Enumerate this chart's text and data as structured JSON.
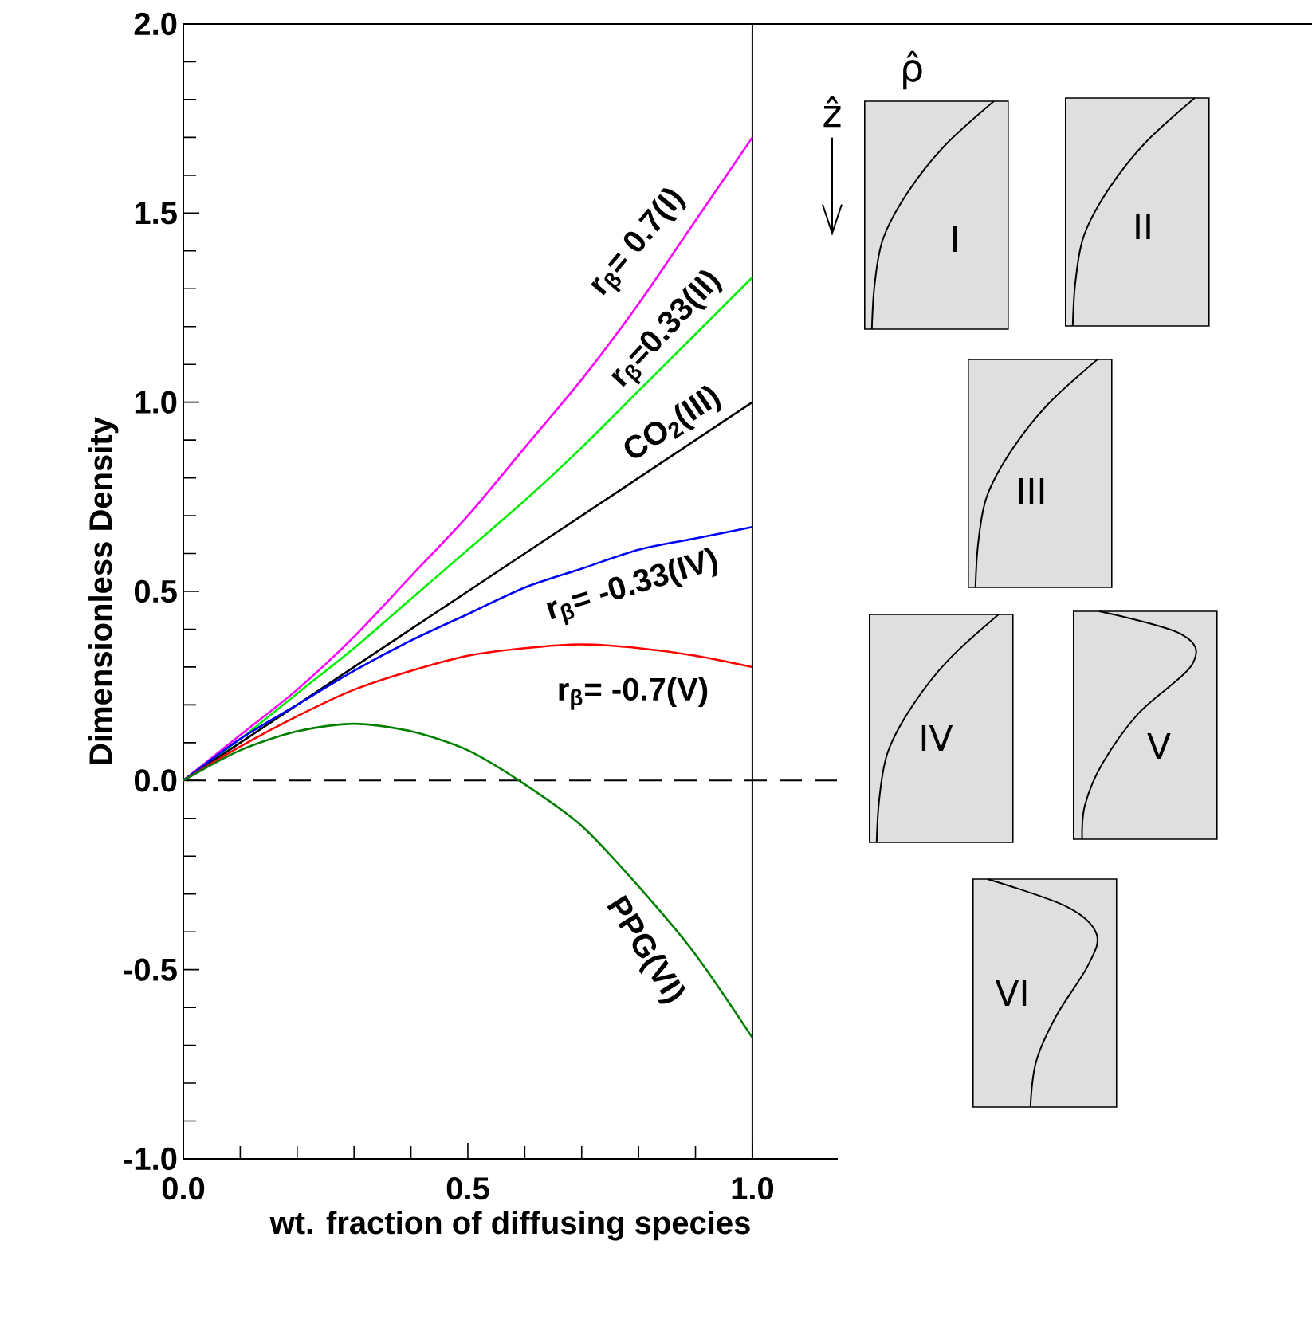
{
  "chart_data": {
    "type": "line",
    "xlabel": "wt. fraction of diffusing species",
    "ylabel": "Dimensionless Density",
    "x": [
      0,
      0.1,
      0.2,
      0.3,
      0.4,
      0.5,
      0.6,
      0.7,
      0.8,
      0.9,
      1.0
    ],
    "series": [
      {
        "name": "r$_{β}$= 0.7(I)",
        "color": "#ff00ff",
        "values": [
          0,
          0.12,
          0.24,
          0.38,
          0.54,
          0.7,
          0.88,
          1.06,
          1.26,
          1.48,
          1.7
        ]
      },
      {
        "name": "r$_{β}$=0.33(II)",
        "color": "#00ee00",
        "values": [
          0,
          0.11,
          0.23,
          0.35,
          0.48,
          0.61,
          0.74,
          0.88,
          1.03,
          1.18,
          1.33
        ]
      },
      {
        "name": "CO$_{2}$(III)",
        "color": "#000000",
        "values": [
          0,
          0.1,
          0.2,
          0.3,
          0.4,
          0.5,
          0.6,
          0.7,
          0.8,
          0.9,
          1.0
        ]
      },
      {
        "name": "r$_{β}$= -0.33(IV)",
        "color": "#0000ff",
        "values": [
          0,
          0.11,
          0.2,
          0.29,
          0.37,
          0.44,
          0.51,
          0.56,
          0.61,
          0.64,
          0.67
        ]
      },
      {
        "name": "r$_{β}$= -0.7(V)",
        "color": "#ff0000",
        "values": [
          0,
          0.09,
          0.17,
          0.24,
          0.29,
          0.33,
          0.35,
          0.36,
          0.35,
          0.33,
          0.3
        ]
      },
      {
        "name": "PPG(VI)",
        "color": "#008000",
        "values": [
          0,
          0.08,
          0.13,
          0.15,
          0.13,
          0.08,
          -0.01,
          -0.12,
          -0.28,
          -0.46,
          -0.68
        ]
      }
    ],
    "xlim": [
      0,
      1.15
    ],
    "ylim": [
      -1.0,
      2.0
    ],
    "xticks": [
      {
        "value": 0,
        "label": "0.0"
      },
      {
        "value": 0.1,
        "label": null
      },
      {
        "value": 0.2,
        "label": null
      },
      {
        "value": 0.3,
        "label": null
      },
      {
        "value": 0.4,
        "label": null
      },
      0.5,
      {
        "value": 0.6,
        "label": null
      },
      {
        "value": 0.7,
        "label": null
      },
      {
        "value": 0.8,
        "label": null
      },
      {
        "value": 0.9,
        "label": null
      },
      {
        "value": 1.0,
        "label": "1.0"
      }
    ],
    "yticks": [
      {
        "value": -1.0,
        "label": "-1.0"
      },
      {
        "value": -0.9,
        "label": null
      },
      {
        "value": -0.8,
        "label": null
      },
      {
        "value": -0.7,
        "label": null
      },
      {
        "value": -0.6,
        "label": null
      },
      -0.5,
      {
        "value": -0.4,
        "label": null
      },
      {
        "value": -0.3,
        "label": null
      },
      {
        "value": -0.2,
        "label": null
      },
      {
        "value": -0.1,
        "label": null
      },
      {
        "value": 0,
        "label": "0.0"
      },
      {
        "value": 0.1,
        "label": null
      },
      {
        "value": 0.2,
        "label": null
      },
      {
        "value": 0.3,
        "label": null
      },
      {
        "value": 0.4,
        "label": null
      },
      0.5,
      {
        "value": 0.6,
        "label": null
      },
      {
        "value": 0.7,
        "label": null
      },
      {
        "value": 0.8,
        "label": null
      },
      {
        "value": 0.9,
        "label": null
      },
      {
        "value": 1.0,
        "label": "1.0"
      },
      {
        "value": 1.1,
        "label": null
      },
      {
        "value": 1.2,
        "label": null
      },
      {
        "value": 1.3,
        "label": null
      },
      {
        "value": 1.4,
        "label": null
      },
      1.5,
      {
        "value": 1.6,
        "label": null
      },
      {
        "value": 1.7,
        "label": null
      },
      {
        "value": 1.8,
        "label": null
      },
      {
        "value": 1.9,
        "label": null
      },
      {
        "value": 2.0,
        "label": "2.0"
      }
    ],
    "ref_lines": [
      {
        "axis": "x",
        "value": 1.0,
        "color": "#000000",
        "line_style": "solid"
      },
      {
        "axis": "y",
        "value": 0,
        "color": "#000000",
        "line_style": "dashed"
      }
    ],
    "annotations": [
      "I",
      "II",
      "III",
      "IV",
      "V",
      "VI",
      "ρ̂",
      "ẑ"
    ],
    "legend": false,
    "grid": false,
    "marker": "none",
    "line_style": "solid"
  }
}
